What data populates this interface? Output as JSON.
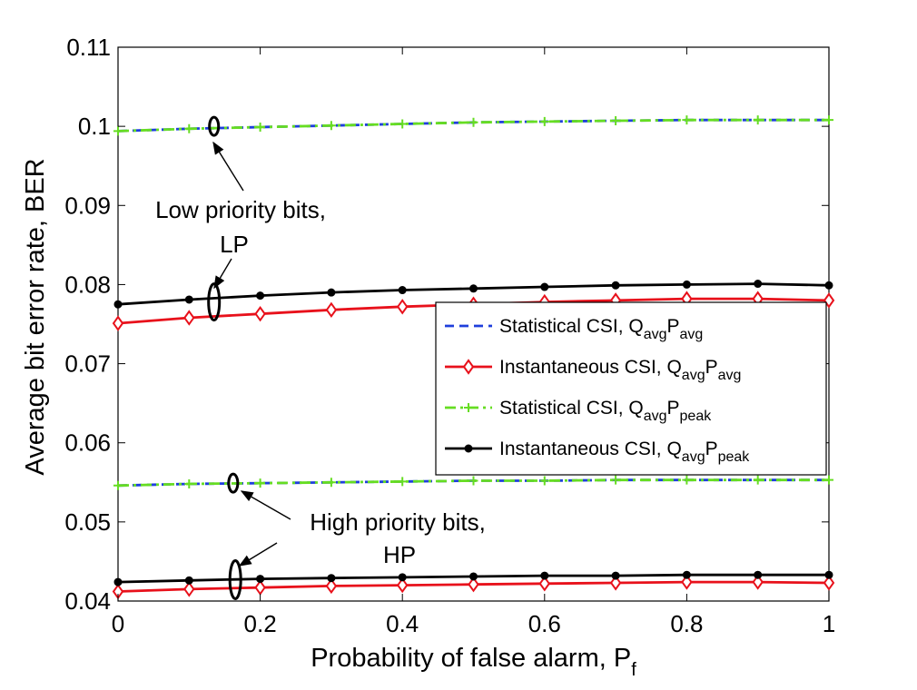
{
  "chart_data": {
    "type": "line",
    "title": "",
    "xlabel": "Probability of false alarm, P",
    "xlabel_sub": "f",
    "ylabel": "Average bit error rate, BER",
    "xlim": [
      0,
      1
    ],
    "ylim": [
      0.04,
      0.11
    ],
    "xticks": [
      "0",
      "0.2",
      "0.4",
      "0.6",
      "0.8",
      "1"
    ],
    "yticks": [
      "0.04",
      "0.05",
      "0.06",
      "0.07",
      "0.08",
      "0.09",
      "0.1",
      "0.11"
    ],
    "grid": false,
    "legend_position": "right",
    "x": [
      0,
      0.1,
      0.2,
      0.3,
      0.4,
      0.5,
      0.6,
      0.7,
      0.8,
      0.9,
      1.0
    ],
    "series": [
      {
        "name": "Statistical CSI, QavgPavg",
        "label": "Statistical CSI, Q",
        "sub1": "avg",
        "mid": "P",
        "sub2": "avg",
        "color": "#1f3fdc",
        "style": "dashed",
        "marker": "none",
        "values": [
          0.0994,
          0.0997,
          0.0999,
          0.1001,
          0.1003,
          0.1005,
          0.1006,
          0.1007,
          0.1008,
          0.1008,
          0.1008
        ]
      },
      {
        "name": "Statistical CSI, QavgPavg (HP)",
        "color": "#1f3fdc",
        "style": "dashed",
        "marker": "none",
        "legend": false,
        "values": [
          0.0546,
          0.0548,
          0.0549,
          0.055,
          0.0551,
          0.0552,
          0.0552,
          0.0553,
          0.0553,
          0.0553,
          0.0553
        ]
      },
      {
        "name": "Instantaneous CSI, QavgPavg",
        "label": "Instantaneous CSI, Q",
        "sub1": "avg",
        "mid": "P",
        "sub2": "avg",
        "color": "#e8111b",
        "style": "solid",
        "marker": "diamond",
        "values": [
          0.0751,
          0.0758,
          0.0763,
          0.0768,
          0.0772,
          0.0775,
          0.0778,
          0.078,
          0.0782,
          0.0782,
          0.078
        ]
      },
      {
        "name": "Instantaneous CSI, QavgPavg (HP)",
        "color": "#e8111b",
        "style": "solid",
        "marker": "diamond",
        "legend": false,
        "values": [
          0.0412,
          0.0415,
          0.0417,
          0.0419,
          0.042,
          0.0421,
          0.0422,
          0.0423,
          0.0424,
          0.0424,
          0.0423
        ]
      },
      {
        "name": "Statistical CSI, QavgPpeak",
        "label": "Statistical CSI, Q",
        "sub1": "avg",
        "mid": "P",
        "sub2": "peak",
        "color": "#66dd22",
        "style": "dashdot",
        "marker": "plus",
        "values": [
          0.0994,
          0.0997,
          0.0999,
          0.1001,
          0.1003,
          0.1005,
          0.1006,
          0.1007,
          0.1008,
          0.1008,
          0.1008
        ]
      },
      {
        "name": "Statistical CSI, QavgPpeak (HP)",
        "color": "#66dd22",
        "style": "dashdot",
        "marker": "plus",
        "legend": false,
        "values": [
          0.0546,
          0.0548,
          0.0549,
          0.055,
          0.0551,
          0.0552,
          0.0552,
          0.0553,
          0.0553,
          0.0553,
          0.0553
        ]
      },
      {
        "name": "Instantaneous CSI, QavgPpeak",
        "label": "Instantaneous CSI, Q",
        "sub1": "avg",
        "mid": "P",
        "sub2": "peak",
        "color": "#000000",
        "style": "solid",
        "marker": "circle",
        "values": [
          0.0775,
          0.0781,
          0.0786,
          0.079,
          0.0793,
          0.0795,
          0.0797,
          0.0799,
          0.08,
          0.0801,
          0.0799
        ]
      },
      {
        "name": "Instantaneous CSI, QavgPpeak (HP)",
        "color": "#000000",
        "style": "solid",
        "marker": "circle",
        "legend": false,
        "values": [
          0.0424,
          0.0426,
          0.0428,
          0.0429,
          0.043,
          0.0431,
          0.0432,
          0.0432,
          0.0433,
          0.0433,
          0.0433
        ]
      }
    ],
    "annotations": [
      {
        "lines": [
          "Low priority bits,",
          "LP"
        ]
      },
      {
        "lines": [
          "High priority bits,",
          "HP"
        ]
      }
    ]
  }
}
